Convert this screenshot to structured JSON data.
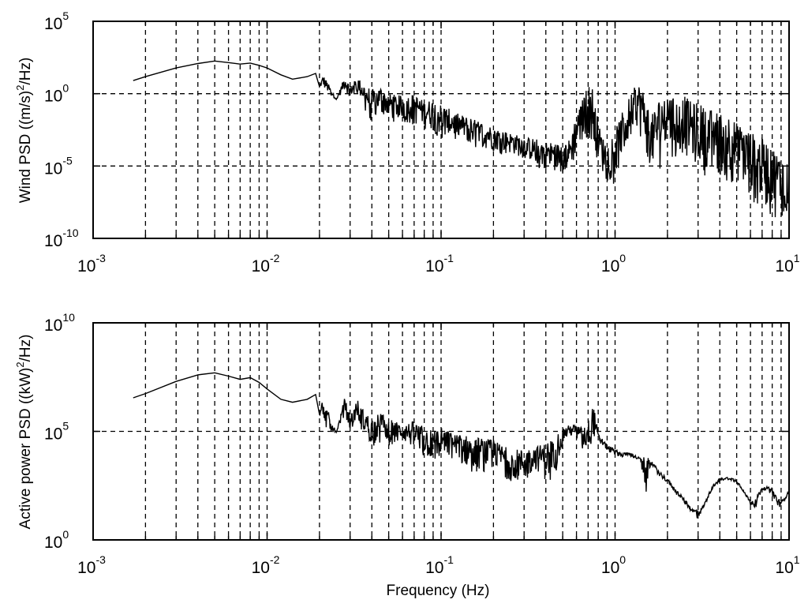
{
  "chart_data": [
    {
      "type": "line",
      "title": "",
      "xlabel": "",
      "ylabel": "Wind PSD ((m/s)^2/Hz)",
      "ylabel_parts": [
        "Wind PSD ((m/s)",
        "2",
        "/Hz)"
      ],
      "xscale": "log",
      "yscale": "log",
      "xlim": [
        0.001,
        10
      ],
      "ylim": [
        1e-10,
        100000
      ],
      "grid": true,
      "x_tick_labels": [
        {
          "base": "10",
          "exp": "-3"
        },
        {
          "base": "10",
          "exp": "-2"
        },
        {
          "base": "10",
          "exp": "-1"
        },
        {
          "base": "10",
          "exp": "0"
        },
        {
          "base": "10",
          "exp": "1"
        }
      ],
      "y_tick_labels": [
        {
          "base": "10",
          "exp": "-10"
        },
        {
          "base": "10",
          "exp": "-5"
        },
        {
          "base": "10",
          "exp": "0"
        },
        {
          "base": "10",
          "exp": "5"
        }
      ],
      "series": [
        {
          "name": "Wind PSD",
          "x": [
            0.0017,
            0.002,
            0.003,
            0.004,
            0.005,
            0.006,
            0.007,
            0.008,
            0.009,
            0.01,
            0.012,
            0.014,
            0.017,
            0.019,
            0.02,
            0.021,
            0.022,
            0.025,
            0.028,
            0.03,
            0.033,
            0.036,
            0.04,
            0.045,
            0.05,
            0.06,
            0.07,
            0.08,
            0.09,
            0.1,
            0.12,
            0.15,
            0.2,
            0.25,
            0.3,
            0.35,
            0.4,
            0.45,
            0.5,
            0.55,
            0.6,
            0.65,
            0.7,
            0.75,
            0.8,
            0.85,
            0.9,
            1.0,
            1.1,
            1.2,
            1.3,
            1.4,
            1.5,
            1.6,
            1.8,
            2.0,
            2.2,
            2.5,
            2.8,
            3.0,
            3.3,
            3.6,
            4.0,
            4.5,
            5.0,
            5.5,
            6.0,
            6.5,
            7.0,
            7.5,
            8.0,
            8.5,
            9.0,
            9.5,
            10.0
          ],
          "y_upper": [
            8,
            15,
            60,
            120,
            180,
            140,
            110,
            130,
            90,
            60,
            20,
            10,
            15,
            25,
            3,
            20,
            8,
            0.4,
            18,
            3,
            14,
            5,
            2,
            3,
            1,
            0.7,
            1,
            0.3,
            0.4,
            0.2,
            0.05,
            0.02,
            0.005,
            0.002,
            0.001,
            0.0008,
            0.0005,
            0.0004,
            0.0003,
            0.0008,
            0.05,
            0.4,
            5,
            3,
            0.01,
            0.001,
            0.0004,
            0.003,
            0.05,
            0.5,
            3,
            6,
            0.5,
            0.02,
            0.6,
            1.5,
            0.4,
            0.8,
            0.2,
            0.3,
            0.1,
            0.08,
            0.05,
            0.05,
            0.01,
            0.005,
            0.003,
            0.001,
            0.0008,
            0.0005,
            0.0003,
            0.0001,
            5e-05,
            5e-05,
            3e-05
          ],
          "y_lower": [
            8,
            15,
            60,
            120,
            180,
            140,
            110,
            130,
            90,
            60,
            20,
            10,
            15,
            25,
            3,
            2,
            1,
            0.4,
            1.5,
            0.5,
            1,
            0.1,
            0.005,
            0.05,
            0.01,
            0.01,
            0.005,
            0.003,
            0.002,
            0.0005,
            0.0005,
            0.0002,
            8e-05,
            5e-05,
            3e-05,
            8e-06,
            5e-06,
            3e-06,
            3e-06,
            2e-06,
            3e-05,
            0.0005,
            0.001,
            5e-05,
            2e-05,
            2e-06,
            1e-06,
            3e-07,
            3e-05,
            0.0005,
            0.005,
            0.0005,
            5e-05,
            5e-06,
            5e-06,
            0.0002,
            2e-05,
            5e-05,
            5e-06,
            1e-05,
            2e-06,
            5e-06,
            1e-06,
            5e-07,
            2e-07,
            1e-07,
            5e-08,
            2e-08,
            1e-08,
            5e-09,
            3e-09,
            2e-09,
            2e-09,
            1e-09,
            3e-09
          ]
        }
      ]
    },
    {
      "type": "line",
      "title": "",
      "xlabel": "Frequency (Hz)",
      "ylabel": "Active power PSD ((kW)^2/Hz)",
      "ylabel_parts": [
        "Active power PSD ((kW)",
        "2",
        "/Hz)"
      ],
      "xscale": "log",
      "yscale": "log",
      "xlim": [
        0.001,
        10
      ],
      "ylim": [
        1,
        10000000000
      ],
      "grid": true,
      "x_tick_labels": [
        {
          "base": "10",
          "exp": "-3"
        },
        {
          "base": "10",
          "exp": "-2"
        },
        {
          "base": "10",
          "exp": "-1"
        },
        {
          "base": "10",
          "exp": "0"
        },
        {
          "base": "10",
          "exp": "1"
        }
      ],
      "y_tick_labels": [
        {
          "base": "10",
          "exp": "0"
        },
        {
          "base": "10",
          "exp": "5"
        },
        {
          "base": "10",
          "exp": "10"
        }
      ],
      "series": [
        {
          "name": "Active power PSD",
          "x": [
            0.0017,
            0.002,
            0.003,
            0.004,
            0.005,
            0.006,
            0.007,
            0.008,
            0.009,
            0.01,
            0.012,
            0.014,
            0.017,
            0.019,
            0.02,
            0.021,
            0.022,
            0.025,
            0.028,
            0.03,
            0.033,
            0.036,
            0.04,
            0.045,
            0.05,
            0.06,
            0.07,
            0.08,
            0.09,
            0.1,
            0.12,
            0.15,
            0.2,
            0.25,
            0.3,
            0.35,
            0.4,
            0.45,
            0.5,
            0.55,
            0.6,
            0.65,
            0.7,
            0.75,
            0.8,
            0.85,
            0.9,
            1.0,
            1.1,
            1.2,
            1.3,
            1.4,
            1.5,
            1.6,
            1.8,
            2.0,
            2.2,
            2.5,
            2.8,
            3.0,
            3.1,
            3.3,
            3.6,
            4.0,
            4.5,
            5.0,
            5.5,
            6.0,
            6.5,
            7.0,
            7.5,
            8.0,
            8.5,
            9.0,
            9.5,
            10.0
          ],
          "y_upper": [
            3500000,
            5500000,
            20000000,
            40000000,
            50000000,
            35000000,
            25000000,
            30000000,
            18000000,
            9000000,
            3000000,
            2200000,
            3000000,
            5000000,
            600000,
            4500000,
            1200000,
            90000,
            4000000,
            500000,
            3000000,
            900000,
            400000,
            800000,
            400000,
            200000,
            300000,
            150000,
            120000,
            150000,
            80000,
            60000,
            40000,
            15000,
            15000,
            20000,
            30000,
            60000,
            150000,
            200000,
            200000,
            150000,
            300000,
            2000000,
            80000,
            40000,
            25000,
            15000,
            10000,
            12000,
            8000,
            6000,
            7000,
            5000,
            1500,
            700,
            250,
            80,
            25,
            30,
            25,
            60,
            300,
            700,
            800,
            600,
            200,
            60,
            100,
            250,
            300,
            250,
            100,
            60,
            100,
            200
          ],
          "y_lower": [
            3500000,
            5500000,
            20000000,
            40000000,
            50000000,
            35000000,
            25000000,
            30000000,
            18000000,
            9000000,
            3000000,
            2200000,
            3000000,
            5000000,
            600000,
            300000,
            100000,
            90000,
            500000,
            100000,
            300000,
            50000,
            20000,
            30000,
            20000,
            30000,
            10000,
            5000,
            3000,
            6000,
            5000,
            1000,
            1500,
            500,
            300,
            1500,
            400,
            800,
            20000,
            50000,
            50000,
            10000,
            10000,
            40000,
            30000,
            20000,
            12000,
            8000,
            6000,
            8000,
            5000,
            4000,
            100,
            3000,
            800,
            400,
            150,
            50,
            15,
            8,
            15,
            40,
            200,
            500,
            600,
            400,
            150,
            40,
            30,
            200,
            200,
            100,
            40,
            30,
            70,
            150
          ]
        }
      ]
    }
  ],
  "axes": {
    "top": {
      "ylabel_main": "Wind PSD ((m/s)",
      "ylabel_sup": "2",
      "ylabel_tail": "/Hz)"
    },
    "bottom": {
      "ylabel_main": "Active power PSD ((kW)",
      "ylabel_sup": "2",
      "ylabel_tail": "/Hz)",
      "xlabel": "Frequency (Hz)"
    }
  }
}
